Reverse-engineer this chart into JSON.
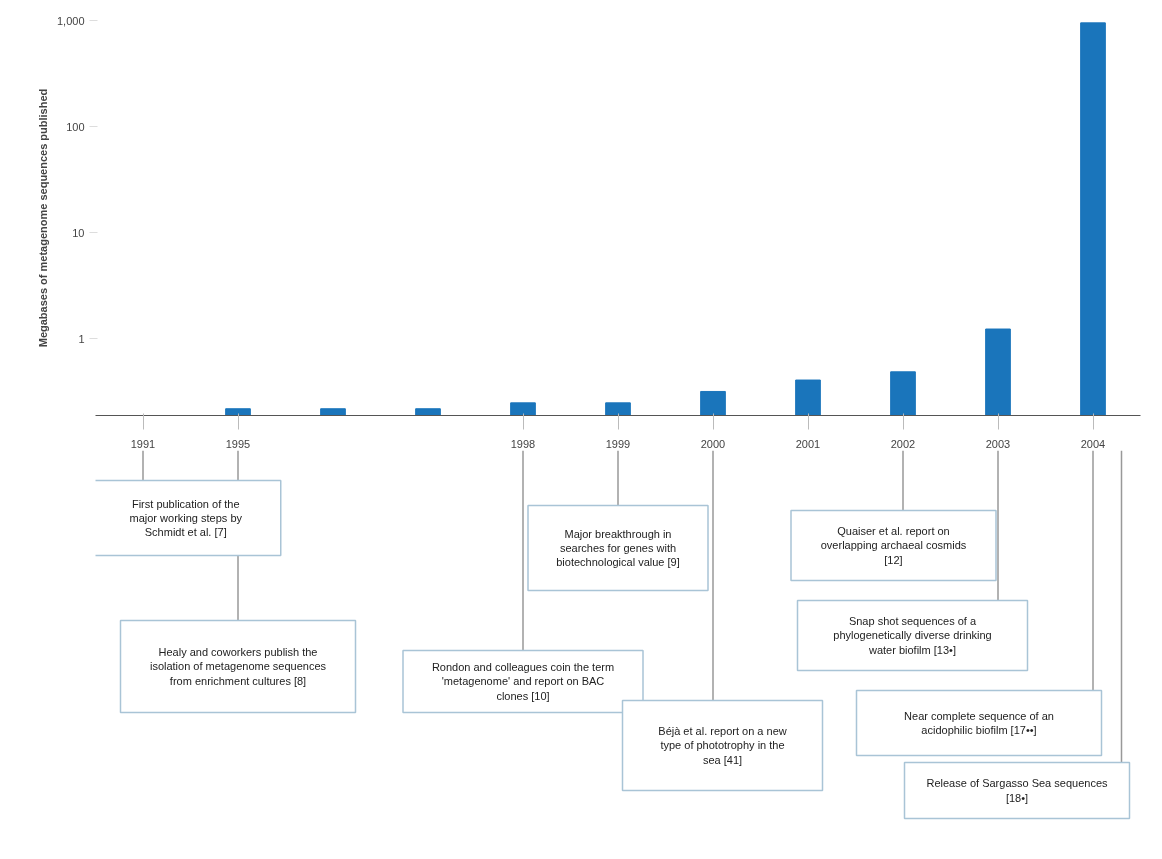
{
  "chart_data": {
    "type": "bar",
    "ylabel": "Megabases of metagenome sequences published",
    "categories": [
      "1991",
      "1995",
      null,
      null,
      "1998",
      "1999",
      "2000",
      "2001",
      "2002",
      "2003",
      "2004"
    ],
    "values": [
      null,
      0.22,
      0.22,
      0.22,
      0.25,
      0.25,
      0.32,
      0.41,
      0.49,
      1.24,
      950
    ],
    "color": "#1a75bb",
    "log": true,
    "ylim": [
      0.19,
      1000
    ],
    "yticks": [
      1,
      10,
      100,
      {
        "value": 1000,
        "label": "1,000"
      }
    ],
    "annotations": [
      "First publication of the major working steps by Schmidt et al. [7]",
      "Healy and coworkers publish the isolation of metagenome sequences from enrichment cultures [8]",
      "Rondon and colleagues coin the term 'metagenome' and report on BAC clones [10]",
      "Major breakthrough in searches for genes with biotechnological value [9]",
      "Béjà et al. report on a new type of phototrophy in the sea [41]",
      "Quaiser et al. report on overlapping archaeal cosmids [12]",
      "Snap shot sequences of a phylogenetically diverse drinking water biofilm [13•]",
      "Near complete sequence of an acidophilic biofilm [17••]",
      "Release of Sargasso Sea sequences [18•]"
    ]
  }
}
